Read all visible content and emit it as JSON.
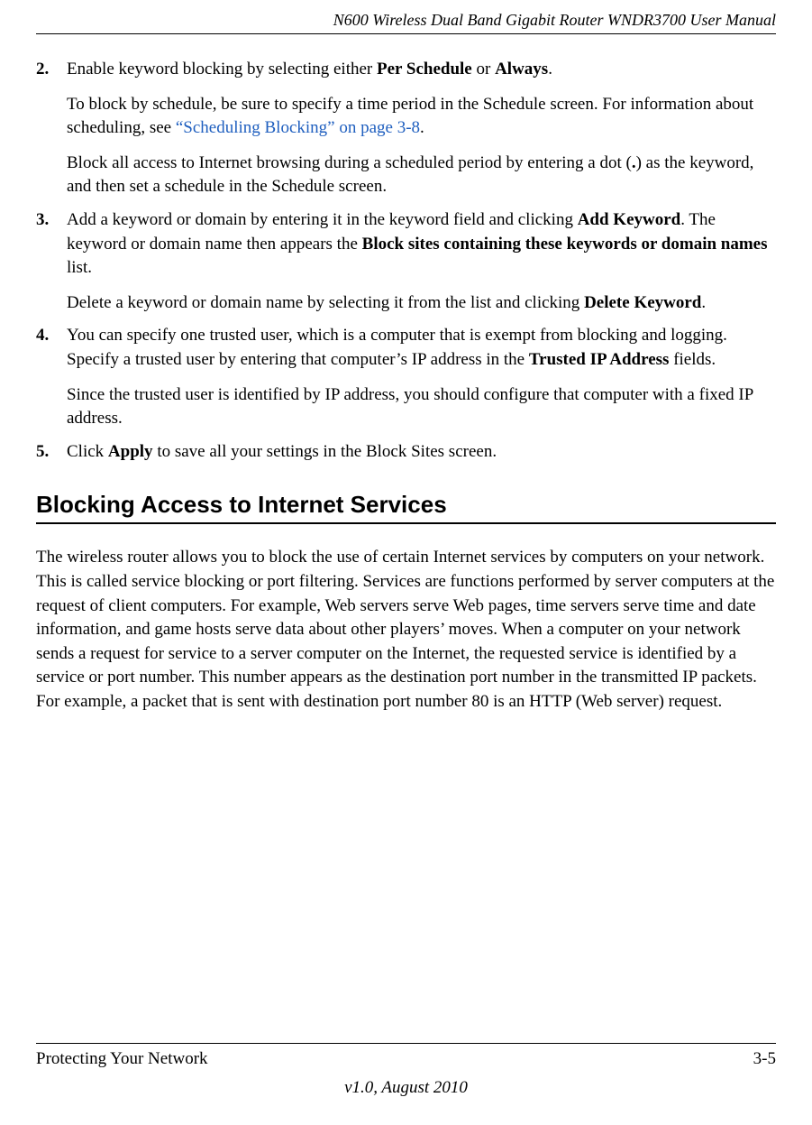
{
  "header": {
    "title": "N600 Wireless Dual Band Gigabit Router WNDR3700 User Manual"
  },
  "steps": [
    {
      "num": "2.",
      "p1a": "Enable keyword blocking by selecting either ",
      "p1b": "Per Schedule",
      "p1c": " or ",
      "p1d": "Always",
      "p1e": ".",
      "p2a": "To block by schedule, be sure to specify a time period in the Schedule screen. For information about scheduling, see ",
      "p2link": "“Scheduling Blocking” on page 3-8",
      "p2b": ".",
      "p3a": "Block all access to Internet browsing during a scheduled period by entering a dot (",
      "p3b": ".",
      "p3c": ") as the keyword, and then set a schedule in the Schedule screen."
    },
    {
      "num": "3.",
      "p1a": "Add a keyword or domain by entering it in the keyword field and clicking ",
      "p1b": "Add Keyword",
      "p1c": ". The keyword or domain name then appears the ",
      "p1d": "Block sites containing these keywords or domain names",
      "p1e": " list.",
      "p2a": "Delete a keyword or domain name by selecting it from the list and clicking ",
      "p2b": "Delete Keyword",
      "p2c": "."
    },
    {
      "num": "4.",
      "p1a": "You can specify one trusted user, which is a computer that is exempt from blocking and logging. Specify a trusted user by entering that computer’s IP address in the ",
      "p1b": "Trusted IP Address",
      "p1c": " fields.",
      "p2": "Since the trusted user is identified by IP address, you should configure that computer with a fixed IP address."
    },
    {
      "num": "5.",
      "p1a": "Click ",
      "p1b": "Apply",
      "p1c": " to save all your settings in the Block Sites screen."
    }
  ],
  "section": {
    "heading": "Blocking Access to Internet Services",
    "body": "The wireless router allows you to block the use of certain Internet services by computers on your network. This is called service blocking or port filtering. Services are functions performed by server computers at the request of client computers. For example, Web servers serve Web pages, time servers serve time and date information, and game hosts serve data about other players’ moves. When a computer on your network sends a request for service to a server computer on the Internet, the requested service is identified by a service or port number. This number appears as the destination port number in the transmitted IP packets. For example, a packet that is sent with destination port number 80 is an HTTP (Web server) request."
  },
  "footer": {
    "left": "Protecting Your Network",
    "right": "3-5",
    "version": "v1.0, August 2010"
  },
  "colors": {
    "text": "#000000",
    "link": "#1f5fbf",
    "background": "#ffffff"
  }
}
